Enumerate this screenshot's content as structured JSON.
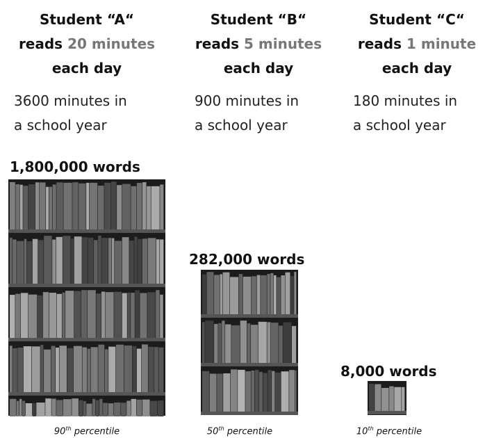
{
  "columns": [
    {
      "title": "Student “A“",
      "reads": "reads",
      "amount": "20 minutes",
      "period": "each day",
      "total_line1": "3600 minutes in",
      "total_line2": "a school year",
      "words": "1,800,000 words",
      "percentile_number": "90",
      "percentile_suffix": "th",
      "percentile_word": "percentile"
    },
    {
      "title": "Student “B“",
      "reads": "reads",
      "amount": "5 minutes",
      "period": "each day",
      "total_line1": "900 minutes in",
      "total_line2": "a school year",
      "words": "282,000 words",
      "percentile_number": "50",
      "percentile_suffix": "th",
      "percentile_word": "percentile"
    },
    {
      "title": "Student “C“",
      "reads": "reads",
      "amount": "1 minute",
      "period": "each day",
      "total_line1": "180 minutes in",
      "total_line2": "a school year",
      "words": "8,000 words",
      "percentile_number": "10",
      "percentile_suffix": "th",
      "percentile_word": "percentile"
    }
  ]
}
